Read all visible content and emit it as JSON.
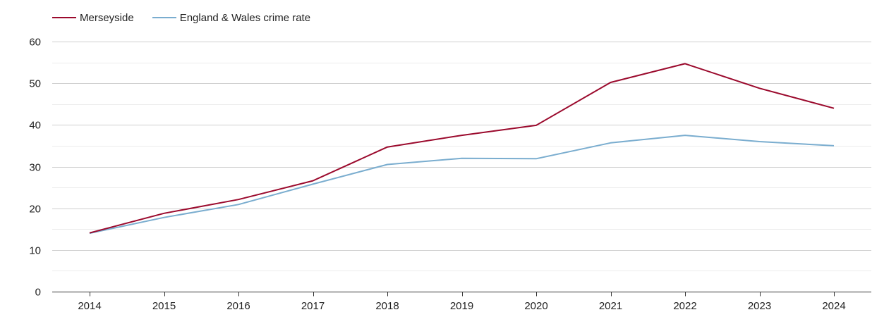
{
  "chart_data": {
    "type": "line",
    "title": "",
    "xlabel": "",
    "ylabel": "",
    "categories": [
      "2014",
      "2015",
      "2016",
      "2017",
      "2018",
      "2019",
      "2020",
      "2021",
      "2022",
      "2023",
      "2024"
    ],
    "ylim": [
      0,
      60
    ],
    "yticks": [
      0,
      10,
      20,
      30,
      40,
      50,
      60
    ],
    "grid": true,
    "legend_position": "top-left",
    "series": [
      {
        "name": "Merseyside",
        "color": "#9b0a2d",
        "values": [
          14.1,
          18.8,
          22.1,
          26.6,
          34.7,
          37.5,
          39.9,
          50.2,
          54.7,
          48.8,
          44.0
        ]
      },
      {
        "name": "England & Wales crime rate",
        "color": "#7aadcf",
        "values": [
          14.0,
          17.8,
          20.9,
          25.8,
          30.5,
          32.0,
          31.9,
          35.7,
          37.5,
          36.0,
          35.0
        ]
      }
    ]
  }
}
